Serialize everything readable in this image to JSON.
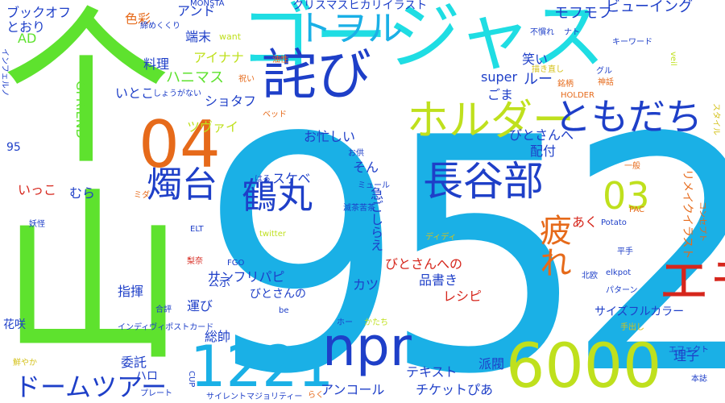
{
  "palette": {
    "cyan": "#1fdde3",
    "sky": "#1ab0e6",
    "blue": "#1e3fc8",
    "green": "#5ee22e",
    "lime": "#bfe01d",
    "orange": "#e66a1a",
    "red": "#d6261c",
    "yellow_small": "#d4c21c"
  },
  "words": [
    {
      "id": "w952",
      "text": "952"
    },
    {
      "id": "wbig1",
      "text": "个"
    },
    {
      "id": "wbig2",
      "text": "山"
    },
    {
      "id": "wgorgeous",
      "text": "ゴージャス"
    },
    {
      "id": "wapology",
      "text": "詫び"
    },
    {
      "id": "w04",
      "text": "04"
    },
    {
      "id": "wtowel",
      "text": "トヲル"
    },
    {
      "id": "wholder",
      "text": "ホルダー"
    },
    {
      "id": "wtomodachi",
      "text": "ともだち"
    },
    {
      "id": "wcandle",
      "text": "燭台"
    },
    {
      "id": "whasebe",
      "text": "長谷部"
    },
    {
      "id": "wtsurumaru",
      "text": "鶴丸"
    },
    {
      "id": "w03",
      "text": "03"
    },
    {
      "id": "wtsukare",
      "text": "疲れ"
    },
    {
      "id": "wemo",
      "text": "エモ"
    },
    {
      "id": "wnpr",
      "text": "npr"
    },
    {
      "id": "w1221",
      "text": "1221"
    },
    {
      "id": "w6000",
      "text": "6000"
    },
    {
      "id": "wdome",
      "text": "ドームツアー"
    },
    {
      "id": "wtouken",
      "text": "刀剣"
    },
    {
      "id": "wchristmas",
      "text": "クリスマスヒカリイラスト"
    },
    {
      "id": "wviewing",
      "text": "ビューイング"
    },
    {
      "id": "wmofu",
      "text": "モフモフ"
    },
    {
      "id": "wbookoff",
      "text": "ブックオフ"
    },
    {
      "id": "wtoori",
      "text": "とおり"
    },
    {
      "id": "wad",
      "text": "AD"
    },
    {
      "id": "wgfriend",
      "text": "GFRIEND"
    },
    {
      "id": "w95",
      "text": "95"
    },
    {
      "id": "wshikisai",
      "text": "色彩"
    },
    {
      "id": "wand",
      "text": "アンド"
    },
    {
      "id": "wtanmatsu",
      "text": "端末"
    },
    {
      "id": "wwant",
      "text": "want"
    },
    {
      "id": "wmonsta",
      "text": "MONSTA"
    },
    {
      "id": "wshimekiri",
      "text": "締めくくり"
    },
    {
      "id": "wryouri",
      "text": "料理"
    },
    {
      "id": "wainana",
      "text": "アイナナ"
    },
    {
      "id": "whanimas",
      "text": "ハニマス"
    },
    {
      "id": "wshotaf",
      "text": "ショタフ"
    },
    {
      "id": "wtsuvai",
      "text": "ツヴァイ"
    },
    {
      "id": "waburasei",
      "text": "油性"
    },
    {
      "id": "wiwai",
      "text": "祝い"
    },
    {
      "id": "wshouga",
      "text": "しょうがない"
    },
    {
      "id": "witoko",
      "text": "いとこ"
    },
    {
      "id": "winfel",
      "text": "インフェルノ"
    },
    {
      "id": "wsuper",
      "text": "super"
    },
    {
      "id": "wgoma",
      "text": "ごま"
    },
    {
      "id": "wwarai",
      "text": "笑い"
    },
    {
      "id": "wroo",
      "text": "ルー"
    },
    {
      "id": "wfunare",
      "text": "不慣れ"
    },
    {
      "id": "wnato",
      "text": "ナト"
    },
    {
      "id": "wkeyword",
      "text": "キーワード"
    },
    {
      "id": "wkakinaoshi",
      "text": "描き直し"
    },
    {
      "id": "wgurume",
      "text": "グル"
    },
    {
      "id": "wveil",
      "text": "veil"
    },
    {
      "id": "wmeigara",
      "text": "銘柄"
    },
    {
      "id": "wshinwa",
      "text": "神話"
    },
    {
      "id": "wholder2",
      "text": "HOLDER"
    },
    {
      "id": "wstyle",
      "text": "スタイル"
    },
    {
      "id": "wbed",
      "text": "ベッド"
    },
    {
      "id": "wisogashii",
      "text": "お忙しい"
    },
    {
      "id": "wbitosanhe",
      "text": "びとさんへ"
    },
    {
      "id": "whaifu",
      "text": "配付"
    },
    {
      "id": "wsonna",
      "text": "そん"
    },
    {
      "id": "woshitomo",
      "text": "お供"
    },
    {
      "id": "wippan",
      "text": "一般"
    },
    {
      "id": "wreisuguri",
      "text": "リメイクイラスト"
    },
    {
      "id": "wikko",
      "text": "いっこ"
    },
    {
      "id": "wmura",
      "text": "むら"
    },
    {
      "id": "whaaru",
      "text": "はる"
    },
    {
      "id": "wsukebe",
      "text": "スケベ"
    },
    {
      "id": "wmuuru",
      "text": "ミュール"
    },
    {
      "id": "wisogasirae",
      "text": "急ごしらえ"
    },
    {
      "id": "wmida",
      "text": "ミダ"
    },
    {
      "id": "wyoukai",
      "text": "妖怪"
    },
    {
      "id": "wconcept",
      "text": "コンセプト"
    },
    {
      "id": "wmetsuno",
      "text": "滅茶苦茶"
    },
    {
      "id": "wpac",
      "text": "PAC"
    },
    {
      "id": "waku",
      "text": "あく"
    },
    {
      "id": "wpotato",
      "text": "Potato"
    },
    {
      "id": "welt",
      "text": "ELT"
    },
    {
      "id": "wtwitter",
      "text": "twitter"
    },
    {
      "id": "wdidi",
      "text": "ディディ"
    },
    {
      "id": "wsanfuri",
      "text": "サンフリパピ"
    },
    {
      "id": "wkoushi",
      "text": "公示"
    },
    {
      "id": "wbitosannoe",
      "text": "びとさんへの"
    },
    {
      "id": "wshinagaki",
      "text": "品書き"
    },
    {
      "id": "wrecipe",
      "text": "レシピ"
    },
    {
      "id": "wkatsu",
      "text": "カツ"
    },
    {
      "id": "wkajiri",
      "text": "梨奈"
    },
    {
      "id": "wfgo",
      "text": "FGO"
    },
    {
      "id": "welkpot",
      "text": "elkpot"
    },
    {
      "id": "whirate",
      "text": "平手"
    },
    {
      "id": "wbitosanno",
      "text": "びとさんの"
    },
    {
      "id": "whokuou",
      "text": "北欧"
    },
    {
      "id": "wpattern",
      "text": "パターン"
    },
    {
      "id": "wshiki",
      "text": "指揮"
    },
    {
      "id": "wgouhyou",
      "text": "合評"
    },
    {
      "id": "wbe",
      "text": "be"
    },
    {
      "id": "wsizefree",
      "text": "サイズフルカラー"
    },
    {
      "id": "whakoben",
      "text": "運び"
    },
    {
      "id": "wkasaki",
      "text": "花咲"
    },
    {
      "id": "windiv",
      "text": "インディヴィポストカード"
    },
    {
      "id": "whoo",
      "text": "ホー"
    },
    {
      "id": "wkatachi",
      "text": "かたち"
    },
    {
      "id": "wtedashi",
      "text": "手出し"
    },
    {
      "id": "wsousui",
      "text": "総帥"
    },
    {
      "id": "wrikoko",
      "text": "理子"
    },
    {
      "id": "wtext",
      "text": "テキスト"
    },
    {
      "id": "whabatsu",
      "text": "派閥"
    },
    {
      "id": "weffect",
      "text": "エフェクト"
    },
    {
      "id": "winin",
      "text": "委託"
    },
    {
      "id": "whallo",
      "text": "ハロ"
    },
    {
      "id": "wazayaka",
      "text": "鮮やか"
    },
    {
      "id": "wcup",
      "text": "CUP"
    },
    {
      "id": "wplate",
      "text": "プレート"
    },
    {
      "id": "wsilent",
      "text": "サイレントマジョリティー"
    },
    {
      "id": "wraku",
      "text": "らく"
    },
    {
      "id": "wencore",
      "text": "アンコール"
    },
    {
      "id": "wticket",
      "text": "チケットぴあ"
    },
    {
      "id": "whonshi",
      "text": "本誌"
    }
  ]
}
